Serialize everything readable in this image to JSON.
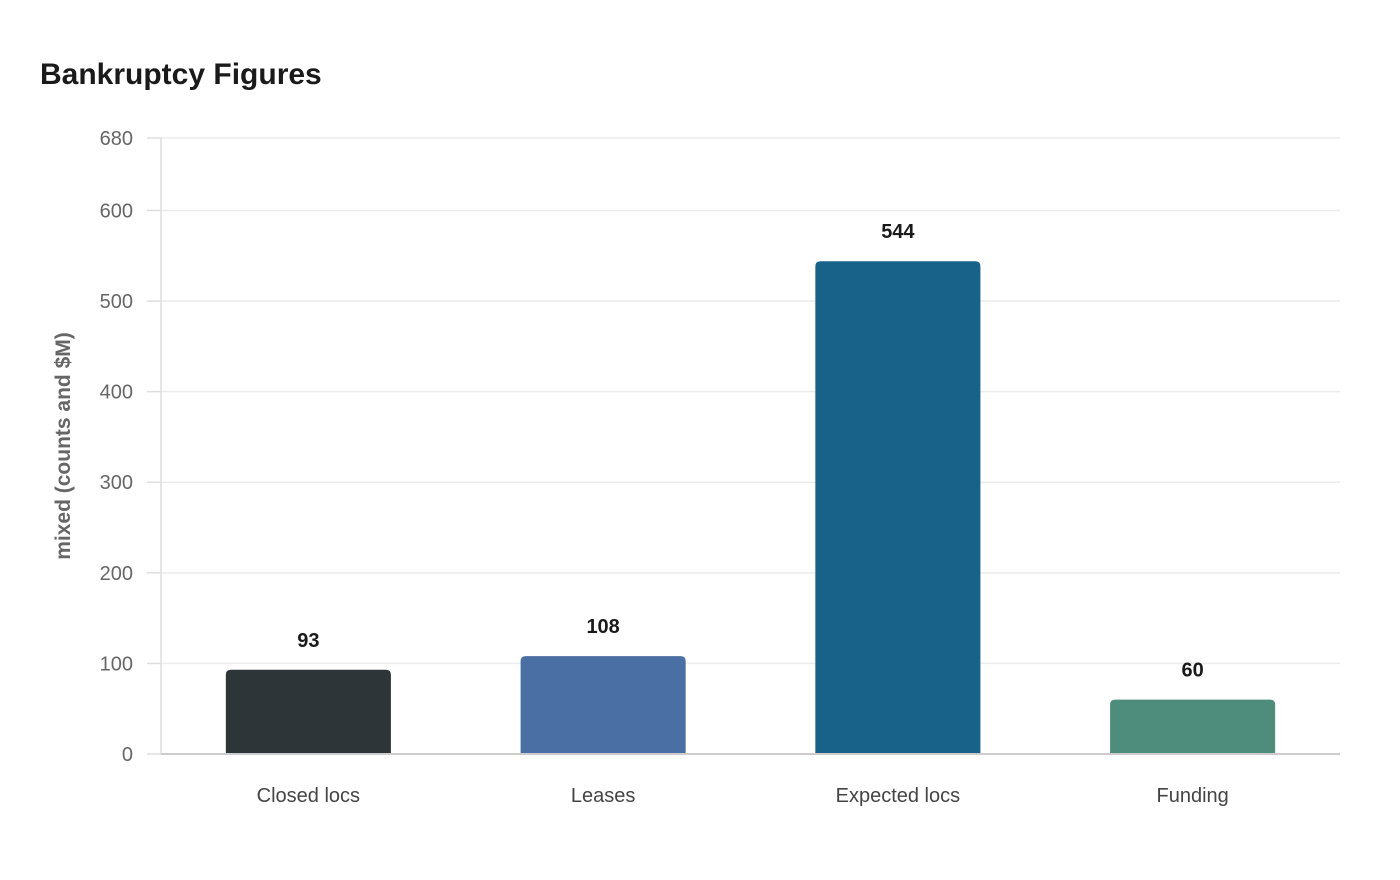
{
  "chart_data": {
    "type": "bar",
    "title": "Bankruptcy Figures",
    "xlabel": "",
    "ylabel": "mixed (counts and $M)",
    "categories": [
      "Closed locs",
      "Leases",
      "Expected locs",
      "Funding"
    ],
    "values": [
      93,
      108,
      544,
      60
    ],
    "bar_colors": [
      "#2d3538",
      "#4a6fa5",
      "#186188",
      "#4e8c7b"
    ],
    "ylim": [
      0,
      680
    ],
    "yticks": [
      0,
      100,
      200,
      300,
      400,
      500,
      600,
      680
    ],
    "grid": true,
    "legend": "none"
  }
}
